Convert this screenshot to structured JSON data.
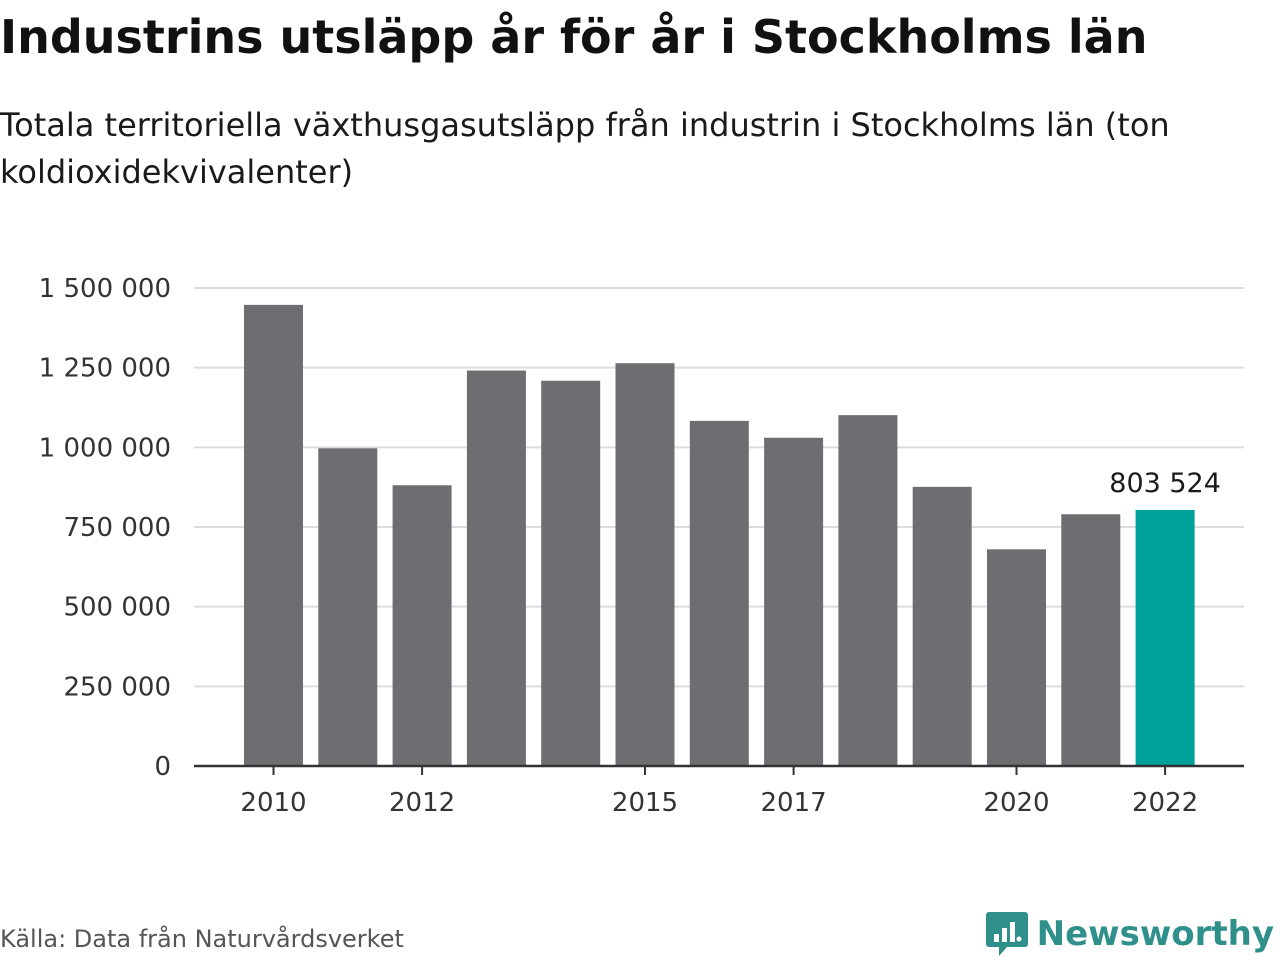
{
  "header": {
    "title": "Industrins utsläpp år för år i Stockholms län",
    "subtitle": "Totala territoriella växthusgasutsläpp från industrin i Stockholms län (ton koldioxidekvivalenter)"
  },
  "footer": {
    "source": "Källa: Data från Naturvårdsverket",
    "logo_text": "Newsworthy",
    "logo_icon": "bar-chart-speech-bubble-icon"
  },
  "colors": {
    "bar": "#6e6d72",
    "highlight": "#00a19a",
    "grid": "#dddddd",
    "axis": "#333333",
    "brand": "#2f8f8a"
  },
  "chart_data": {
    "type": "bar",
    "categories": [
      "2010",
      "2011",
      "2012",
      "2013",
      "2014",
      "2015",
      "2016",
      "2017",
      "2018",
      "2019",
      "2020",
      "2021",
      "2022"
    ],
    "values": [
      1447000,
      997000,
      881000,
      1241000,
      1209000,
      1264000,
      1083000,
      1030000,
      1101000,
      876000,
      680000,
      790000,
      803524
    ],
    "highlight_index": 12,
    "data_labels": [
      {
        "index": 12,
        "text": "803 524"
      }
    ],
    "x_tick_labels": [
      "2010",
      "2012",
      "2015",
      "2017",
      "2020",
      "2022"
    ],
    "y_ticks": [
      0,
      250000,
      500000,
      750000,
      1000000,
      1250000,
      1500000
    ],
    "y_tick_labels": [
      "0",
      "250 000",
      "500 000",
      "750 000",
      "1 000 000",
      "1 250 000",
      "1 500 000"
    ],
    "ylim": [
      0,
      1500000
    ],
    "grid": true,
    "legend": "none"
  }
}
